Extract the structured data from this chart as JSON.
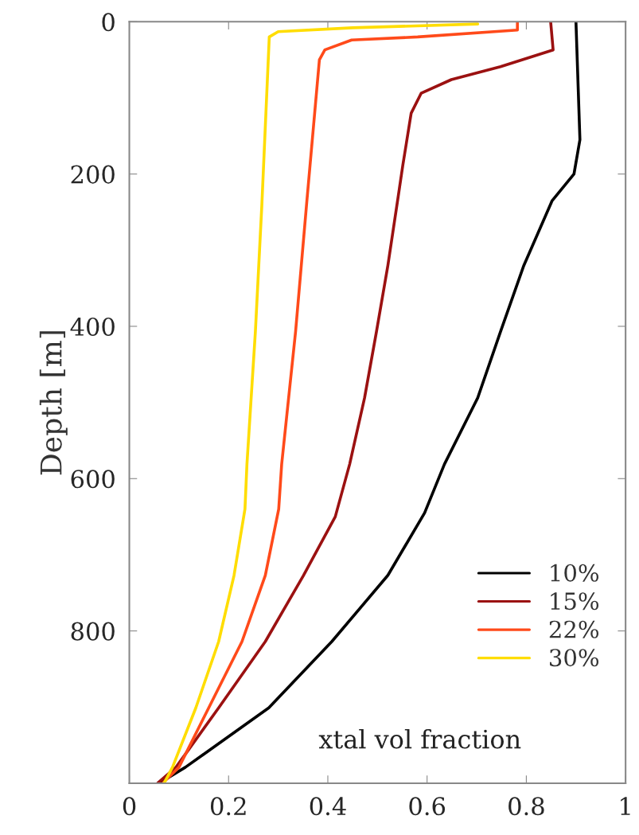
{
  "chart_data": {
    "type": "line",
    "ylabel": "Depth [m]",
    "annotations": [
      "xtal vol fraction"
    ],
    "xlim": [
      0,
      1
    ],
    "xticks": [
      0,
      0.2,
      0.4,
      0.6,
      0.8,
      1
    ],
    "ylim": [
      1000,
      0
    ],
    "yticks": [
      0,
      200,
      400,
      600,
      800
    ],
    "grid": false,
    "legend": "bottom right",
    "marker": "none",
    "line_style": "solid",
    "series": [
      {
        "name": "10%",
        "color": "#000000",
        "x": [
          0.9,
          0.908,
          0.896,
          0.852,
          0.795,
          0.748,
          0.702,
          0.635,
          0.595,
          0.521,
          0.408,
          0.281,
          0.113,
          0.06
        ],
        "values": [
          0,
          155,
          200,
          235,
          320,
          407,
          494,
          581,
          645,
          727,
          814,
          901,
          979,
          1000
        ]
      },
      {
        "name": "15%",
        "color": "#9b1111",
        "x": [
          0.849,
          0.854,
          0.748,
          0.649,
          0.588,
          0.568,
          0.551,
          0.541,
          0.521,
          0.498,
          0.474,
          0.444,
          0.415,
          0.351,
          0.274,
          0.18,
          0.094,
          0.057
        ],
        "values": [
          0,
          37,
          59,
          76,
          94,
          120,
          189,
          233,
          320,
          407,
          494,
          581,
          650,
          727,
          814,
          901,
          979,
          1000
        ]
      },
      {
        "name": "22%",
        "color": "#ff4a1a",
        "x": [
          0.782,
          0.782,
          0.581,
          0.448,
          0.394,
          0.383,
          0.357,
          0.335,
          0.307,
          0.301,
          0.274,
          0.227,
          0.16,
          0.1,
          0.067
        ],
        "values": [
          0,
          11,
          20,
          24,
          37,
          50,
          241,
          407,
          581,
          640,
          727,
          814,
          901,
          979,
          1000
        ]
      },
      {
        "name": "30%",
        "color": "#ffdd00",
        "x": [
          0.702,
          0.45,
          0.3,
          0.282,
          0.267,
          0.254,
          0.237,
          0.233,
          0.211,
          0.18,
          0.134,
          0.087,
          0.07
        ],
        "values": [
          3,
          8,
          13,
          20,
          241,
          407,
          581,
          640,
          727,
          814,
          901,
          979,
          1000
        ]
      }
    ]
  }
}
